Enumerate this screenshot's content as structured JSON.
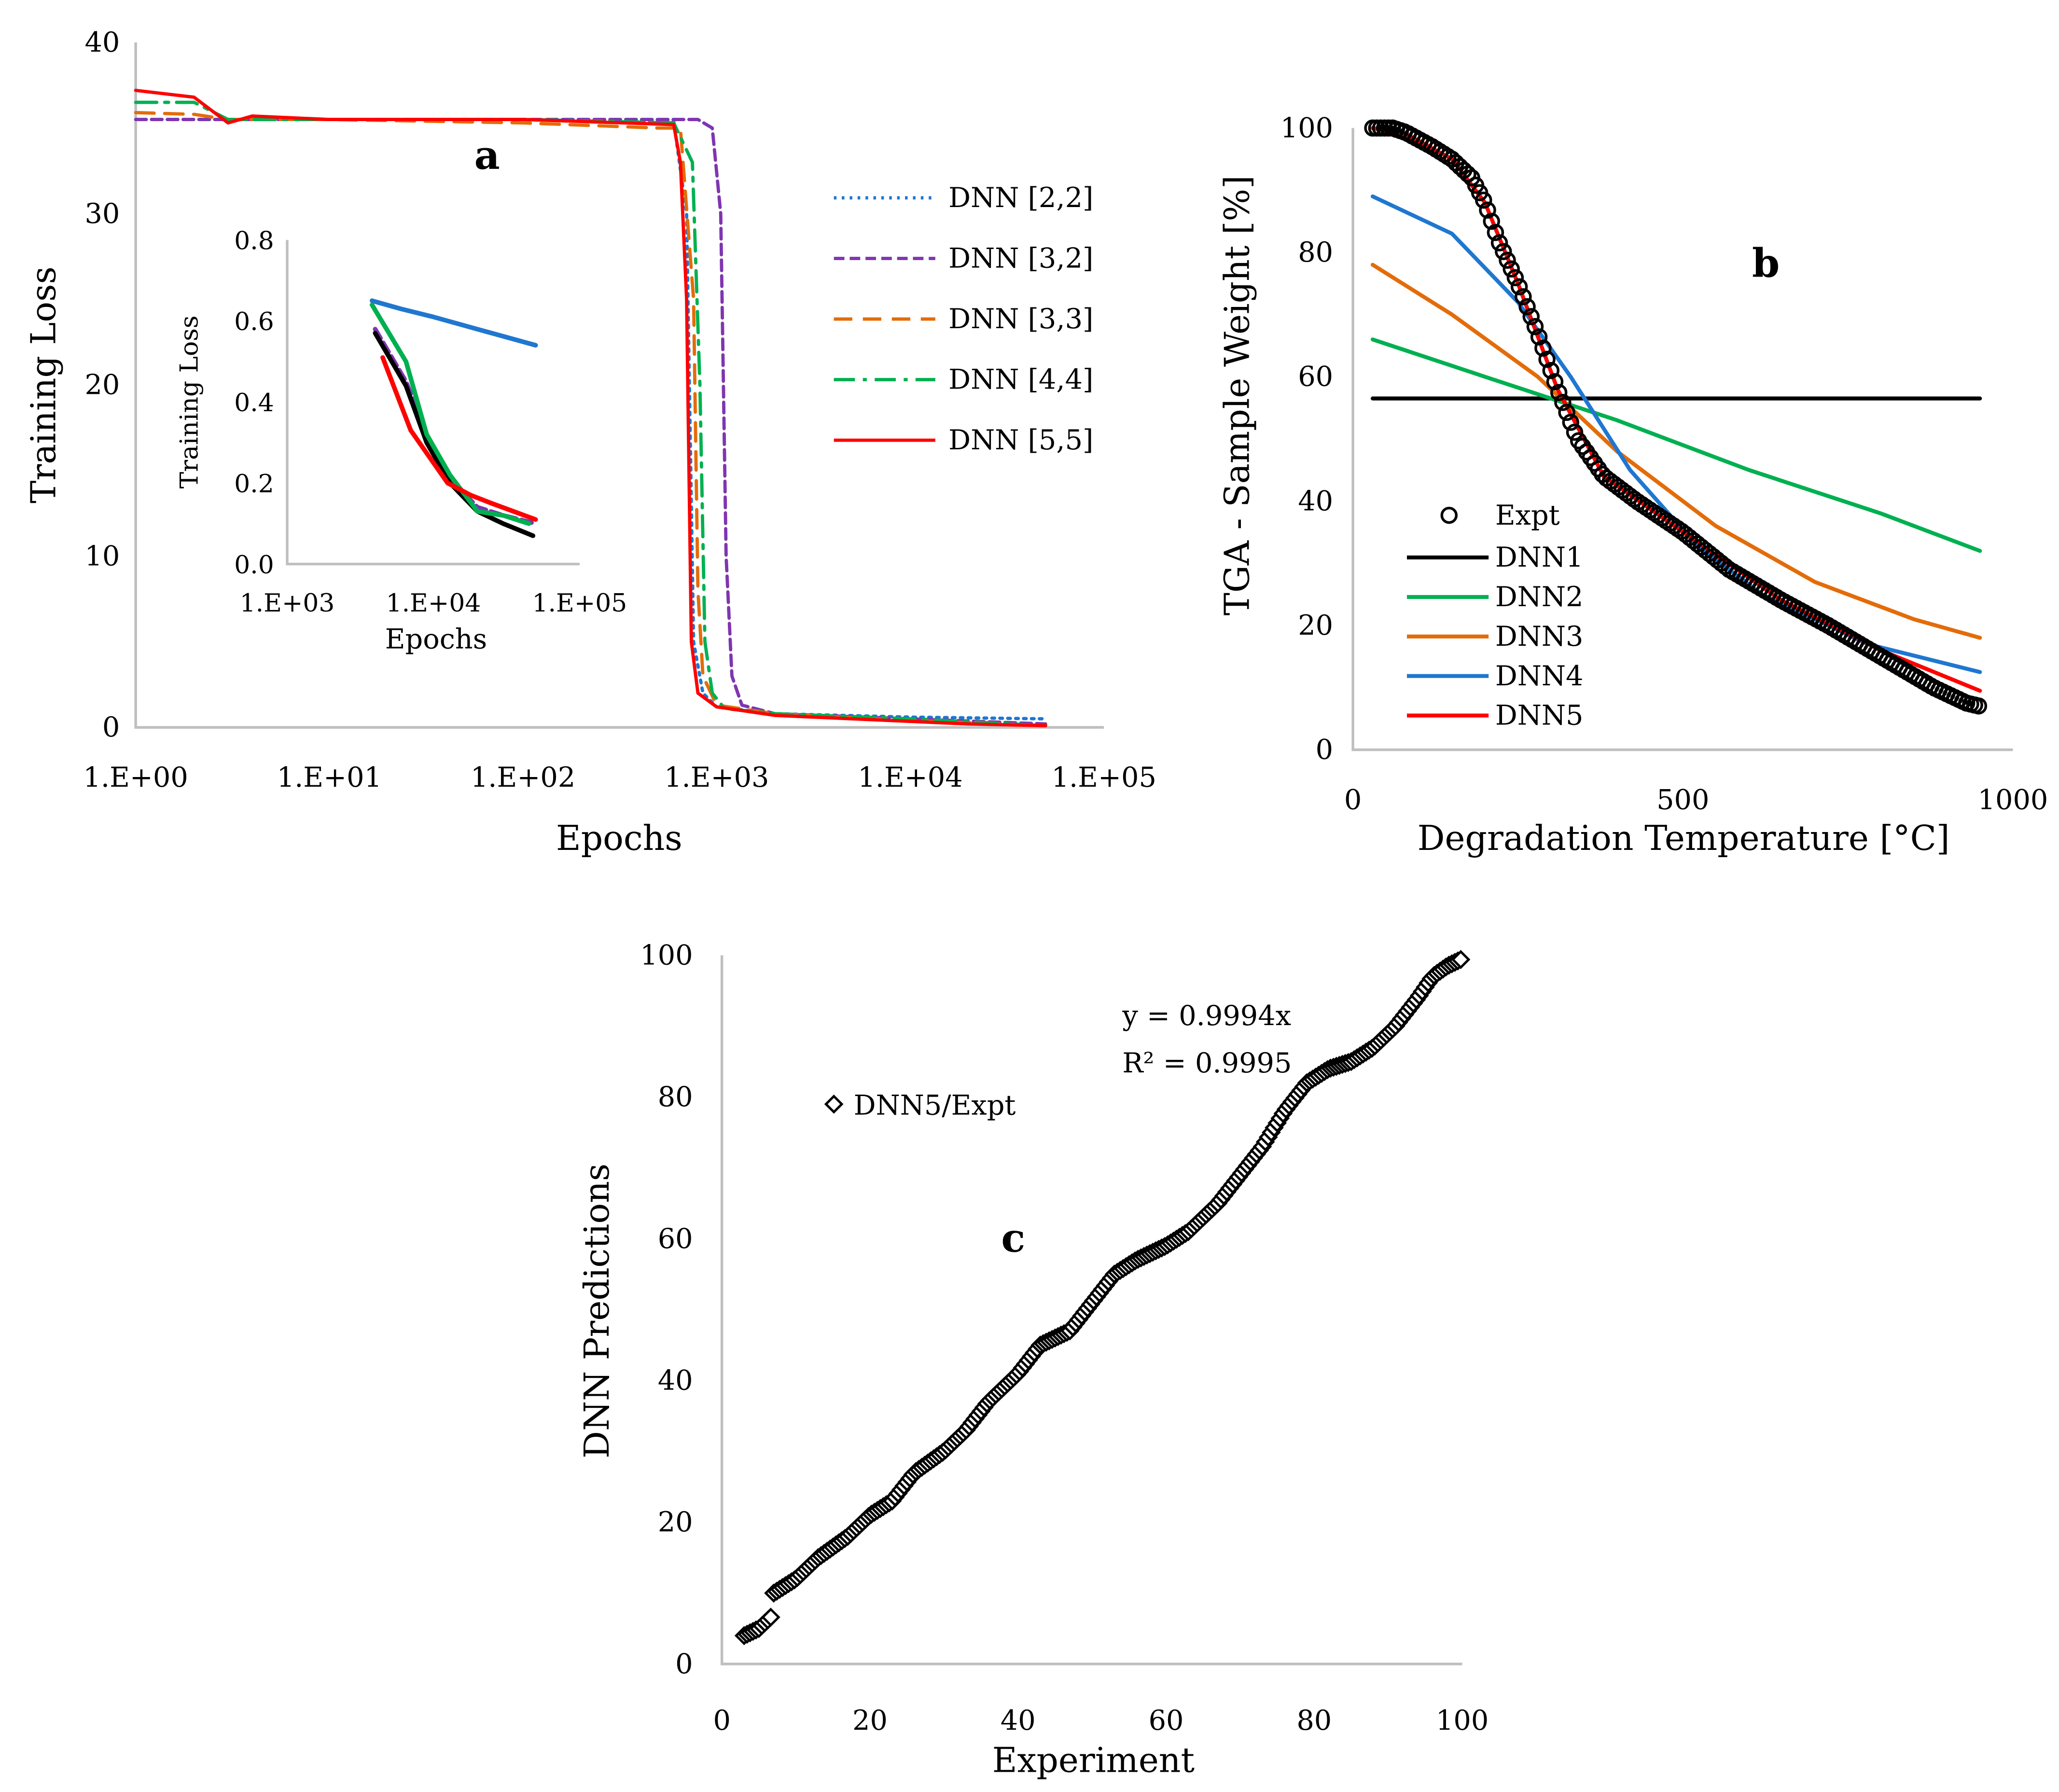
{
  "chart_data": [
    {
      "id": "a",
      "type": "line",
      "panel_label": "a",
      "xlabel": "Epochs",
      "ylabel": "Training Loss",
      "xscale": "log",
      "xlim": [
        1,
        100000
      ],
      "ylim": [
        0,
        40
      ],
      "xticks": [
        1,
        10,
        100,
        1000,
        10000,
        100000
      ],
      "xtick_labels": [
        "1.E+00",
        "1.E+01",
        "1.E+02",
        "1.E+03",
        "1.E+04",
        "1.E+05"
      ],
      "yticks": [
        0,
        10,
        20,
        30,
        40
      ],
      "ytick_labels": [
        "0",
        "10",
        "20",
        "30",
        "40"
      ],
      "legend_position": "right",
      "series": [
        {
          "name": "DNN [2,2]",
          "color": "#1f77d0",
          "dash": "2,4",
          "points": [
            [
              1,
              35.5
            ],
            [
              10,
              35.5
            ],
            [
              100,
              35.5
            ],
            [
              600,
              35.4
            ],
            [
              700,
              30
            ],
            [
              760,
              5
            ],
            [
              850,
              2
            ],
            [
              1000,
              1.2
            ],
            [
              2000,
              0.8
            ],
            [
              10000,
              0.6
            ],
            [
              50000,
              0.5
            ]
          ]
        },
        {
          "name": "DNN [3,2]",
          "color": "#7f35b0",
          "dash": "8,4",
          "points": [
            [
              1,
              35.5
            ],
            [
              10,
              35.5
            ],
            [
              100,
              35.5
            ],
            [
              800,
              35.5
            ],
            [
              950,
              35
            ],
            [
              1050,
              30
            ],
            [
              1120,
              10
            ],
            [
              1200,
              3
            ],
            [
              1350,
              1.3
            ],
            [
              2000,
              0.8
            ],
            [
              10000,
              0.5
            ],
            [
              50000,
              0.2
            ]
          ]
        },
        {
          "name": "DNN [3,3]",
          "color": "#e36c0a",
          "dash": "14,8",
          "points": [
            [
              1,
              35.9
            ],
            [
              2,
              35.8
            ],
            [
              3,
              35.5
            ],
            [
              10,
              35.5
            ],
            [
              100,
              35.3
            ],
            [
              500,
              35
            ],
            [
              650,
              35
            ],
            [
              760,
              25
            ],
            [
              800,
              8
            ],
            [
              850,
              3
            ],
            [
              1000,
              1.3
            ],
            [
              2000,
              0.8
            ],
            [
              10000,
              0.4
            ],
            [
              50000,
              0.1
            ]
          ]
        },
        {
          "name": "DNN [4,4]",
          "color": "#00b050",
          "dash": "16,6,3,6",
          "points": [
            [
              1,
              36.5
            ],
            [
              2,
              36.5
            ],
            [
              3,
              35.5
            ],
            [
              10,
              35.5
            ],
            [
              100,
              35.5
            ],
            [
              600,
              35.3
            ],
            [
              750,
              33
            ],
            [
              820,
              20
            ],
            [
              870,
              5
            ],
            [
              950,
              2
            ],
            [
              1100,
              1.1
            ],
            [
              2000,
              0.8
            ],
            [
              10000,
              0.5
            ],
            [
              50000,
              0.1
            ]
          ]
        },
        {
          "name": "DNN [5,5]",
          "color": "#ff0000",
          "dash": "",
          "points": [
            [
              1,
              37.2
            ],
            [
              2,
              36.8
            ],
            [
              3,
              35.3
            ],
            [
              4,
              35.7
            ],
            [
              10,
              35.5
            ],
            [
              100,
              35.5
            ],
            [
              600,
              35.2
            ],
            [
              650,
              33
            ],
            [
              700,
              25
            ],
            [
              740,
              5
            ],
            [
              800,
              2
            ],
            [
              1000,
              1.2
            ],
            [
              2000,
              0.7
            ],
            [
              20000,
              0.2
            ],
            [
              50000,
              0.1
            ]
          ]
        }
      ]
    },
    {
      "id": "a-inset",
      "type": "line",
      "xlabel": "Epochs",
      "ylabel": "Training Loss",
      "xscale": "log",
      "xlim": [
        1000,
        100000
      ],
      "ylim": [
        0,
        0.8
      ],
      "xticks": [
        1000,
        10000,
        100000
      ],
      "xtick_labels": [
        "1.E+03",
        "1.E+04",
        "1.E+05"
      ],
      "yticks": [
        0,
        0.2,
        0.4,
        0.6,
        0.8
      ],
      "ytick_labels": [
        "0.0",
        "0.2",
        "0.4",
        "0.6",
        "0.8"
      ],
      "series": [
        {
          "name": "DNN [2,2]",
          "color": "#1f77d0",
          "dash": "",
          "points": [
            [
              3800,
              0.65
            ],
            [
              6000,
              0.63
            ],
            [
              10000,
              0.61
            ],
            [
              20000,
              0.58
            ],
            [
              50000,
              0.54
            ]
          ]
        },
        {
          "name": "DNN [3,2]",
          "color": "#7f35b0",
          "dash": "8,4",
          "points": [
            [
              4000,
              0.58
            ],
            [
              6500,
              0.45
            ],
            [
              9000,
              0.32
            ],
            [
              13000,
              0.21
            ],
            [
              20000,
              0.14
            ],
            [
              30000,
              0.12
            ],
            [
              50000,
              0.1
            ]
          ]
        },
        {
          "name": "DNN [3,3]",
          "color": "#000000",
          "dash": "",
          "points": [
            [
              4000,
              0.57
            ],
            [
              6500,
              0.44
            ],
            [
              9000,
              0.3
            ],
            [
              13000,
              0.2
            ],
            [
              20000,
              0.13
            ],
            [
              30000,
              0.1
            ],
            [
              48000,
              0.07
            ]
          ]
        },
        {
          "name": "DNN [4,4]",
          "color": "#00b050",
          "dash": "",
          "points": [
            [
              3800,
              0.64
            ],
            [
              6500,
              0.5
            ],
            [
              9000,
              0.32
            ],
            [
              13000,
              0.22
            ],
            [
              20000,
              0.13
            ],
            [
              30000,
              0.12
            ],
            [
              45000,
              0.1
            ]
          ]
        },
        {
          "name": "DNN [5,5]",
          "color": "#ff0000",
          "dash": "",
          "points": [
            [
              4500,
              0.51
            ],
            [
              7000,
              0.33
            ],
            [
              10000,
              0.25
            ],
            [
              12500,
              0.2
            ],
            [
              18000,
              0.17
            ],
            [
              25000,
              0.15
            ],
            [
              50000,
              0.11
            ]
          ]
        }
      ]
    },
    {
      "id": "b",
      "type": "line",
      "panel_label": "b",
      "xlabel": "Degradation Temperature [°C]",
      "ylabel": "TGA - Sample Weight [%]",
      "xlim": [
        0,
        1000
      ],
      "ylim": [
        0,
        100
      ],
      "xticks": [
        0,
        500,
        1000
      ],
      "xtick_labels": [
        "0",
        "500",
        "1000"
      ],
      "yticks": [
        0,
        20,
        40,
        60,
        80,
        100
      ],
      "ytick_labels": [
        "0",
        "20",
        "40",
        "60",
        "80",
        "100"
      ],
      "legend_position": "bottom-left",
      "expt": {
        "name": "Expt",
        "points": [
          [
            30,
            100
          ],
          [
            60,
            100
          ],
          [
            80,
            99.3
          ],
          [
            120,
            97
          ],
          [
            150,
            95
          ],
          [
            180,
            92
          ],
          [
            200,
            88
          ],
          [
            220,
            82
          ],
          [
            250,
            75
          ],
          [
            280,
            67
          ],
          [
            310,
            58
          ],
          [
            340,
            50
          ],
          [
            380,
            44
          ],
          [
            430,
            40
          ],
          [
            500,
            35
          ],
          [
            570,
            29
          ],
          [
            650,
            24
          ],
          [
            720,
            20
          ],
          [
            800,
            15
          ],
          [
            880,
            10
          ],
          [
            930,
            7.5
          ],
          [
            950,
            7
          ]
        ]
      },
      "series": [
        {
          "name": "DNN1",
          "color": "#000000",
          "points": [
            [
              30,
              56.5
            ],
            [
              950,
              56.5
            ]
          ]
        },
        {
          "name": "DNN2",
          "color": "#00b050",
          "points": [
            [
              30,
              66
            ],
            [
              200,
              60
            ],
            [
              400,
              53
            ],
            [
              600,
              45
            ],
            [
              800,
              38
            ],
            [
              950,
              32
            ]
          ]
        },
        {
          "name": "DNN3",
          "color": "#e36c0a",
          "points": [
            [
              30,
              78
            ],
            [
              150,
              70
            ],
            [
              280,
              60
            ],
            [
              400,
              48
            ],
            [
              550,
              36
            ],
            [
              700,
              27
            ],
            [
              850,
              21
            ],
            [
              950,
              18
            ]
          ]
        },
        {
          "name": "DNN4",
          "color": "#1f77d0",
          "points": [
            [
              30,
              89
            ],
            [
              150,
              83
            ],
            [
              250,
              72
            ],
            [
              330,
              60
            ],
            [
              420,
              45
            ],
            [
              520,
              33
            ],
            [
              620,
              25
            ],
            [
              780,
              17
            ],
            [
              950,
              12.5
            ]
          ]
        },
        {
          "name": "DNN5",
          "color": "#ff0000",
          "points": [
            [
              30,
              100
            ],
            [
              80,
              99
            ],
            [
              150,
              95
            ],
            [
              200,
              88
            ],
            [
              250,
              75
            ],
            [
              310,
              58
            ],
            [
              380,
              44
            ],
            [
              500,
              35
            ],
            [
              650,
              24
            ],
            [
              800,
              16
            ],
            [
              950,
              9.5
            ]
          ]
        }
      ]
    },
    {
      "id": "c",
      "type": "scatter",
      "panel_label": "c",
      "xlabel": "Experiment",
      "ylabel": "DNN Predictions",
      "xlim": [
        0,
        100
      ],
      "ylim": [
        0,
        100
      ],
      "xticks": [
        0,
        20,
        40,
        60,
        80,
        100
      ],
      "xtick_labels": [
        "0",
        "20",
        "40",
        "60",
        "80",
        "100"
      ],
      "yticks": [
        0,
        20,
        40,
        60,
        80,
        100
      ],
      "ytick_labels": [
        "0",
        "20",
        "40",
        "60",
        "80",
        "100"
      ],
      "legend": "DNN5/Expt",
      "equation": "y = 0.9994x",
      "r2": "R² = 0.9995",
      "points": [
        [
          3,
          4
        ],
        [
          5,
          5
        ],
        [
          7,
          7
        ],
        [
          7,
          10
        ],
        [
          10,
          12
        ],
        [
          13,
          15
        ],
        [
          17,
          18
        ],
        [
          20,
          21
        ],
        [
          23,
          23
        ],
        [
          26,
          27
        ],
        [
          30,
          30
        ],
        [
          33,
          33
        ],
        [
          36,
          37
        ],
        [
          40,
          41
        ],
        [
          43,
          45
        ],
        [
          47,
          47
        ],
        [
          50,
          51
        ],
        [
          53,
          55
        ],
        [
          56,
          57
        ],
        [
          60,
          59
        ],
        [
          63,
          61
        ],
        [
          67,
          65
        ],
        [
          70,
          69
        ],
        [
          73,
          73
        ],
        [
          76,
          78
        ],
        [
          79,
          82
        ],
        [
          82,
          84
        ],
        [
          85,
          85
        ],
        [
          88,
          87
        ],
        [
          91,
          90
        ],
        [
          94,
          94
        ],
        [
          96,
          97
        ],
        [
          98,
          98.5
        ],
        [
          100,
          99.5
        ]
      ]
    }
  ]
}
